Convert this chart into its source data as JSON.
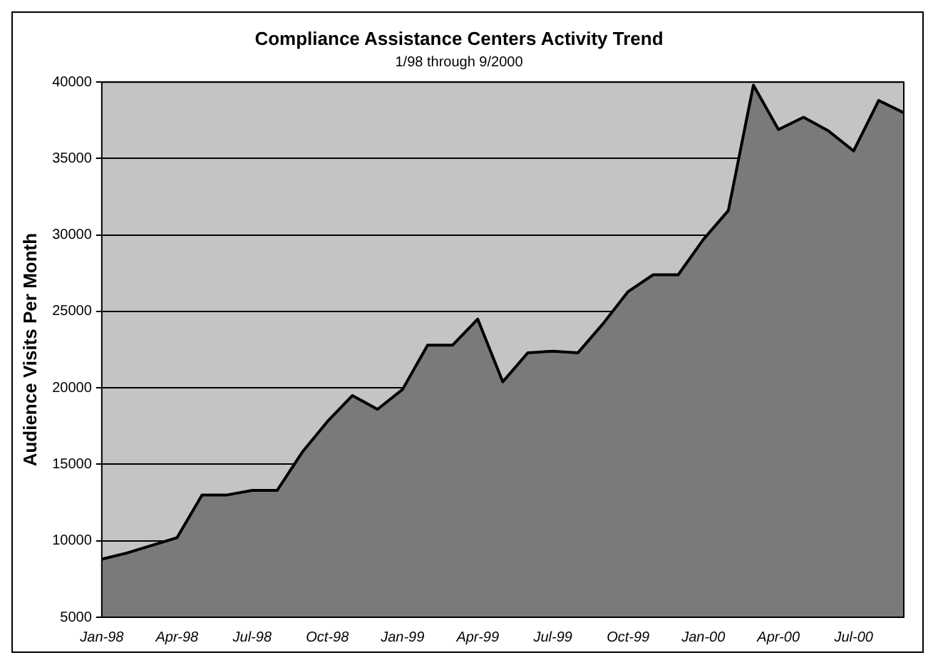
{
  "chart_data": {
    "type": "area",
    "title": "Compliance Assistance Centers Activity Trend",
    "subtitle": "1/98 through 9/2000",
    "ylabel": "Audience Visits Per Month",
    "categories": [
      "Jan-98",
      null,
      null,
      "Apr-98",
      null,
      null,
      "Jul-98",
      null,
      null,
      "Oct-98",
      null,
      null,
      "Jan-99",
      null,
      null,
      "Apr-99",
      null,
      null,
      "Jul-99",
      null,
      null,
      "Oct-99",
      null,
      null,
      "Jan-00",
      null,
      null,
      "Apr-00",
      null,
      null,
      "Jul-00",
      null,
      null
    ],
    "series": [
      {
        "color": "#7a7a7a",
        "values": [
          8800,
          9200,
          9700,
          10200,
          13000,
          13000,
          13300,
          13300,
          15800,
          17800,
          19500,
          18600,
          19900,
          22800,
          22800,
          24500,
          20400,
          22300,
          22400,
          22300,
          24200,
          26300,
          27400,
          27400,
          29700,
          31600,
          39800,
          36900,
          37700,
          36800,
          35500,
          38800,
          38000
        ]
      }
    ],
    "ylim": [
      5000,
      40000
    ],
    "yticks": [
      5000,
      10000,
      15000,
      20000,
      25000,
      30000,
      35000,
      40000
    ],
    "grid": "y",
    "legend": false
  }
}
